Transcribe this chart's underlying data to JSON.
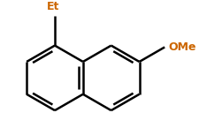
{
  "background_color": "#ffffff",
  "bond_color": "#000000",
  "Et_color": "#cc6600",
  "OMe_color": "#cc6600",
  "Et_label": "Et",
  "OMe_label": "OMe",
  "bond_width": 1.8,
  "figsize": [
    2.25,
    1.53
  ],
  "dpi": 100
}
